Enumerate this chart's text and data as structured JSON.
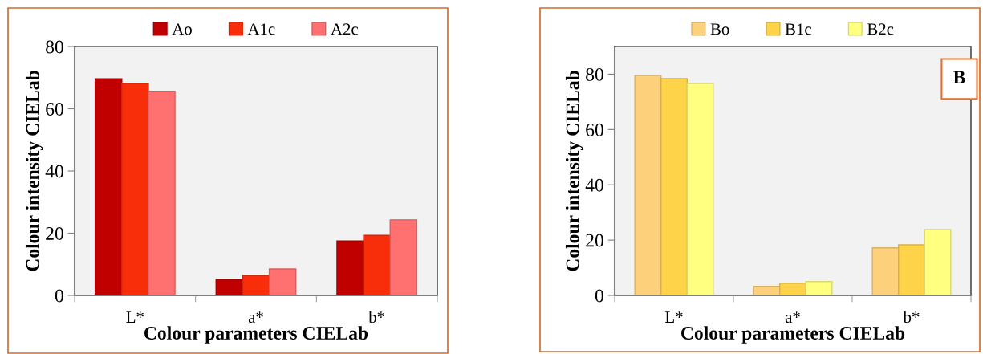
{
  "chart_data": [
    {
      "type": "bar",
      "categories": [
        "L*",
        "a*",
        "b*"
      ],
      "xlabel": "Colour parameters CIELab",
      "ylabel": "Colour intensity CIELab",
      "ylim": [
        0,
        80
      ],
      "yticks": [
        0,
        20,
        40,
        60,
        80
      ],
      "grid": false,
      "legend": "top",
      "series": [
        {
          "name": "Ao",
          "color": "#c00000",
          "values": [
            69.6,
            5.1,
            17.5
          ]
        },
        {
          "name": "A1c",
          "color": "#f82d0a",
          "values": [
            68.1,
            6.4,
            19.3
          ]
        },
        {
          "name": "A2c",
          "color": "#ff7070",
          "values": [
            65.6,
            8.5,
            24.3
          ]
        }
      ]
    },
    {
      "type": "bar",
      "categories": [
        "L*",
        "a*",
        "b*"
      ],
      "xlabel": "Colour parameters CIELab",
      "ylabel": "Colour intensity CIELab",
      "ylim": [
        0,
        90
      ],
      "yticks": [
        0,
        20,
        40,
        60,
        80
      ],
      "grid": false,
      "legend": "top",
      "annotations": [
        "B"
      ],
      "series": [
        {
          "name": "Bo",
          "color": "#fdd07c",
          "values": [
            79.5,
            3.3,
            17.2
          ]
        },
        {
          "name": "B1c",
          "color": "#fed34a",
          "values": [
            78.4,
            4.4,
            18.3
          ]
        },
        {
          "name": "B2c",
          "color": "#ffff80",
          "values": [
            76.6,
            5.0,
            23.8
          ]
        }
      ]
    }
  ]
}
